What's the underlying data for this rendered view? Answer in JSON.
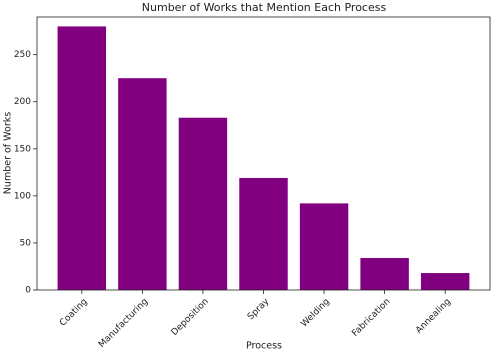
{
  "chart_data": {
    "type": "bar",
    "title": "Number of Works that Mention Each Process",
    "x_label": "Process",
    "y_label": "Number of Works",
    "categories": [
      "Coating",
      "Manufacturing",
      "Deposition",
      "Spray",
      "Welding",
      "Fabrication",
      "Annealing"
    ],
    "values": [
      280,
      225,
      183,
      119,
      92,
      34,
      18
    ],
    "color": "#800080",
    "ylim": [
      0,
      290
    ],
    "yticks": [
      0,
      50,
      100,
      150,
      200,
      250
    ]
  }
}
